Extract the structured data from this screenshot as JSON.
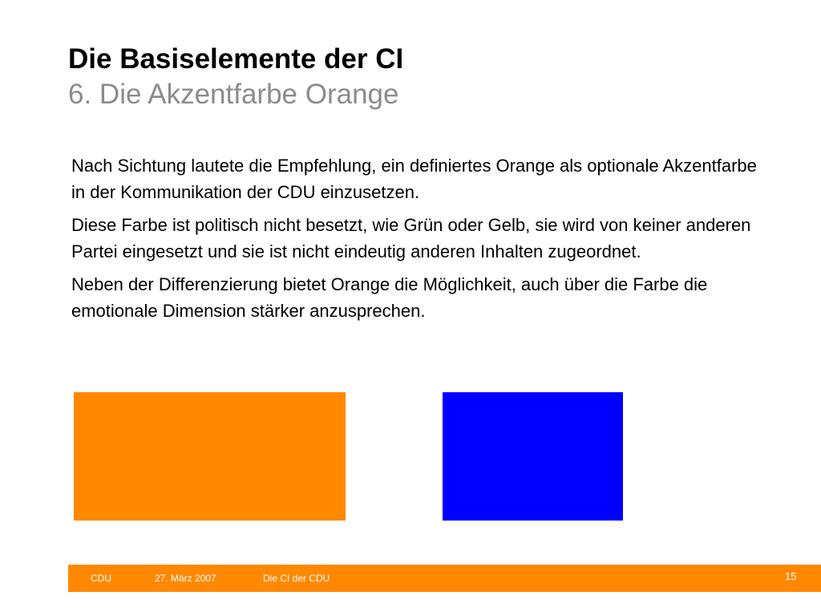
{
  "slide": {
    "title": "Die Basiselemente der CI",
    "subtitle": "6. Die Akzentfarbe Orange",
    "paragraphs": [
      "Nach Sichtung lautete die Empfehlung, ein definiertes Orange als optionale Akzentfarbe in der Kommunikation der CDU einzusetzen.",
      "Diese Farbe ist politisch nicht besetzt, wie Grün oder Gelb, sie wird von keiner anderen Partei eingesetzt und sie ist nicht eindeutig anderen Inhalten zugeordnet.",
      "Neben der Differenzierung bietet Orange die Möglichkeit, auch über die Farbe die emotionale Dimension stärker anzusprechen."
    ],
    "swatches": {
      "orange": "#ff8800",
      "blue": "#0000ff"
    }
  },
  "footer": {
    "organization": "CDU",
    "date": "27. März 2007",
    "document": "Die CI der CDU",
    "page": "15",
    "color": "#ff8800"
  }
}
